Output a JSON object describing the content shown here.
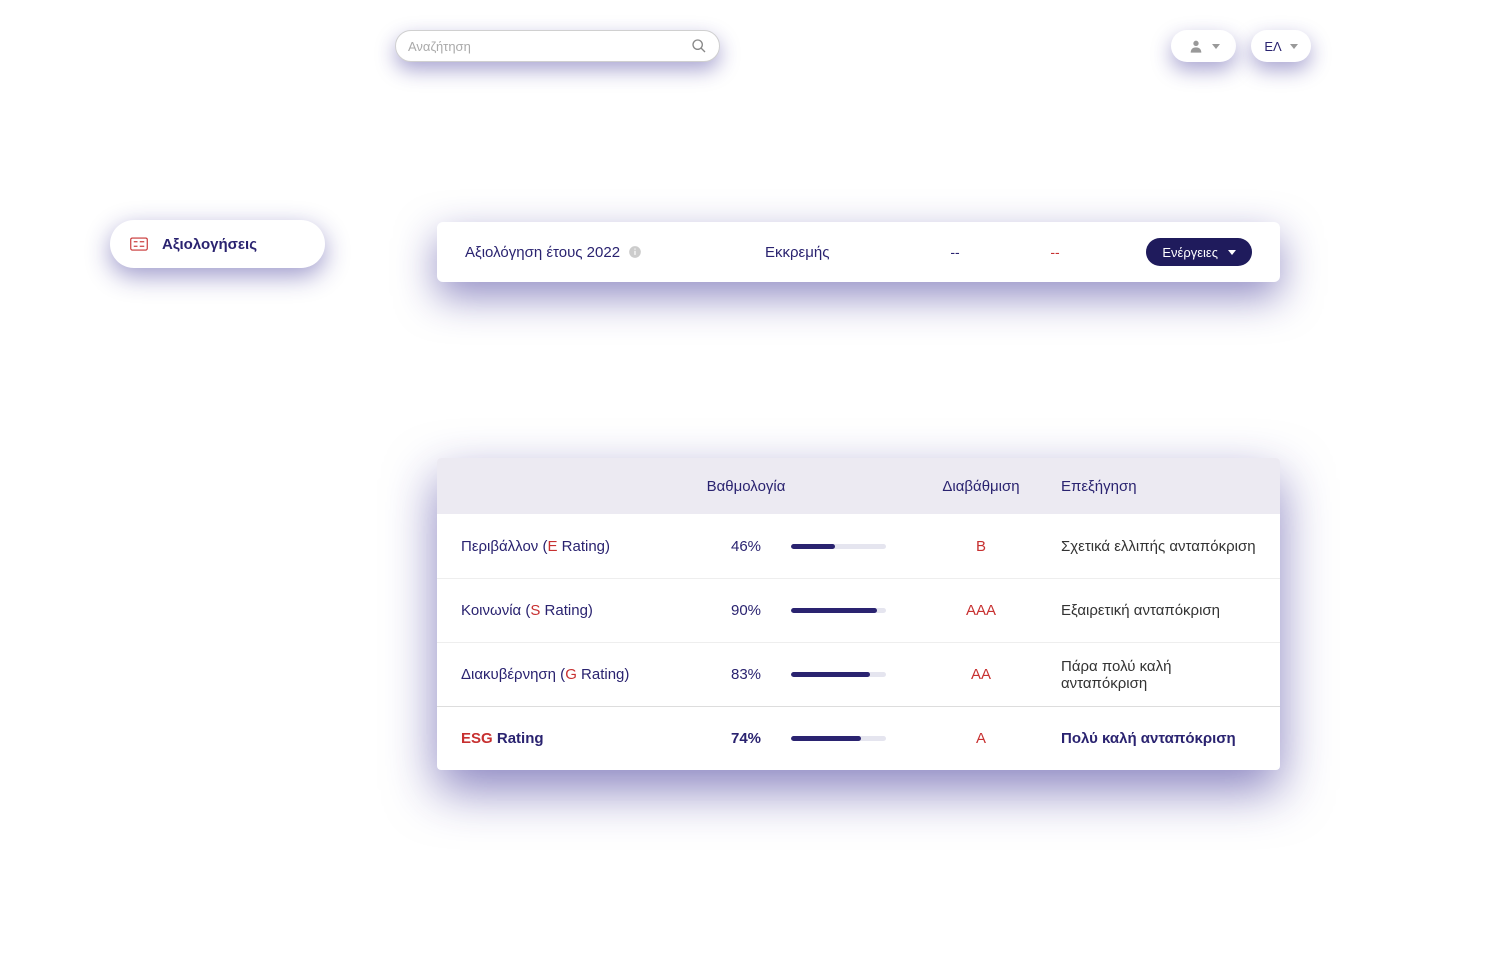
{
  "colors": {
    "primary": "#2a2370",
    "accent": "#c73030",
    "bar_bg": "#e5e5ef",
    "header_bg": "#eceaf2",
    "white": "#ffffff"
  },
  "topbar": {
    "search_placeholder": "Αναζήτηση",
    "language": "ΕΛ"
  },
  "sidebar": {
    "label": "Αξιολογήσεις"
  },
  "assessment": {
    "title": "Αξιολόγηση έτους 2022",
    "status": "Εκκρεμής",
    "col3": "--",
    "col4": "--",
    "actions_label": "Ενέργειες"
  },
  "ratings": {
    "headers": {
      "score": "Βαθμολογία",
      "grade": "Διαβάθμιση",
      "explain": "Επεξήγηση"
    },
    "rows": [
      {
        "name_prefix": "Περιβάλλον (",
        "name_letter": "E",
        "name_suffix": " Rating)",
        "score_label": "46%",
        "score_value": 46,
        "grade": "B",
        "explain": "Σχετικά ελλιπής ανταπόκριση",
        "bold": false
      },
      {
        "name_prefix": "Κοινωνία (",
        "name_letter": "S",
        "name_suffix": " Rating)",
        "score_label": "90%",
        "score_value": 90,
        "grade": "AAA",
        "explain": "Εξαιρετική ανταπόκριση",
        "bold": false
      },
      {
        "name_prefix": "Διακυβέρνηση  (",
        "name_letter": "G",
        "name_suffix": " Rating)",
        "score_label": "83%",
        "score_value": 83,
        "grade": "AA",
        "explain": "Πάρα πολύ καλή ανταπόκριση",
        "bold": false
      },
      {
        "name_prefix": "",
        "name_letter": "ESG",
        "name_suffix": " Rating",
        "score_label": "74%",
        "score_value": 74,
        "grade": "A",
        "explain": "Πολύ καλή ανταπόκριση",
        "bold": true
      }
    ]
  }
}
